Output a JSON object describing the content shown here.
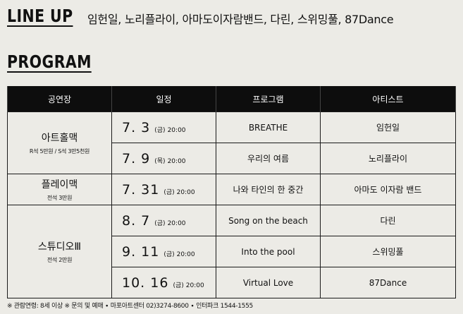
{
  "lineup": {
    "heading": "LINE UP",
    "artists_text": "임헌일, 노리플라이, 아마도이자람밴드, 다린, 스위밍풀, 87Dance"
  },
  "program": {
    "heading": "PROGRAM",
    "columns": [
      "공연장",
      "일정",
      "프로그램",
      "아티스트"
    ],
    "venues": [
      {
        "name": "아트홀맥",
        "price": "R석 5만원 / S석 3만5천원"
      },
      {
        "name": "플레이맥",
        "price": "전석 3만원"
      },
      {
        "name": "스튜디오Ⅲ",
        "price": "전석 2만원"
      }
    ],
    "rows": [
      {
        "date": "7. 3",
        "dow": "(금)",
        "time": "20:00",
        "program": "BREATHE",
        "artist": "임헌일"
      },
      {
        "date": "7. 9",
        "dow": "(목)",
        "time": "20:00",
        "program": "우리의 여름",
        "artist": "노리플라이"
      },
      {
        "date": "7. 31",
        "dow": "(금)",
        "time": "20:00",
        "program": "나와 타인의 한 중간",
        "artist": "아마도 이자람 밴드"
      },
      {
        "date": "8. 7",
        "dow": "(금)",
        "time": "20:00",
        "program": "Song on the beach",
        "artist": "다린"
      },
      {
        "date": "9. 11",
        "dow": "(금)",
        "time": "20:00",
        "program": "Into the pool",
        "artist": "스위밍풀"
      },
      {
        "date": "10. 16",
        "dow": "(금)",
        "time": "20:00",
        "program": "Virtual Love",
        "artist": "87Dance"
      }
    ]
  },
  "footer": {
    "text": "※ 관람연령: 8세 이상   ※ 문의 및 예매   ∙ 마포아트센터 02)3274-8600   ∙ 인터파크 1544-1555"
  }
}
